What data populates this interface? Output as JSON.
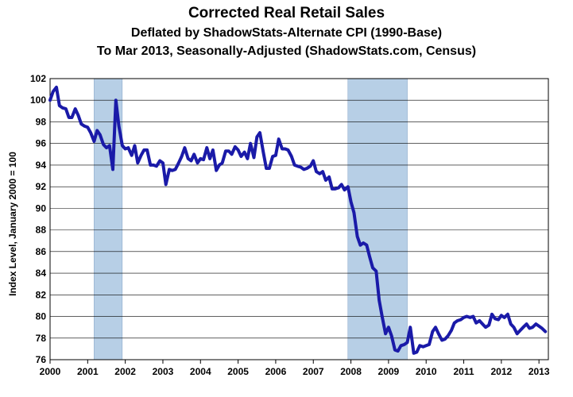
{
  "chart_data": {
    "type": "line",
    "title": "Corrected Real Retail Sales",
    "subtitle": "Deflated by ShadowStats-Alternate CPI (1990-Base)",
    "subtitle2": "To Mar 2013, Seasonally-Adjusted (ShadowStats.com, Census)",
    "ylabel": "Index Level, January 2000 = 100",
    "xlabel": "",
    "ylim": [
      76,
      102
    ],
    "xlim": [
      2000.0,
      2013.25
    ],
    "yticks": [
      "76",
      "78",
      "80",
      "82",
      "84",
      "86",
      "88",
      "90",
      "92",
      "94",
      "96",
      "98",
      "100",
      "102"
    ],
    "xticks": [
      "2000",
      "2001",
      "2002",
      "2003",
      "2004",
      "2005",
      "2006",
      "2007",
      "2008",
      "2009",
      "2010",
      "2011",
      "2012",
      "2013"
    ],
    "grid": true,
    "recession_periods": [
      [
        2001.17,
        2001.92
      ],
      [
        2007.92,
        2009.5
      ]
    ],
    "series": [
      {
        "name": "",
        "x": [
          2000.0,
          2000.08,
          2000.17,
          2000.25,
          2000.33,
          2000.42,
          2000.5,
          2000.58,
          2000.67,
          2000.75,
          2000.83,
          2000.92,
          2001.0,
          2001.08,
          2001.17,
          2001.25,
          2001.33,
          2001.42,
          2001.5,
          2001.58,
          2001.67,
          2001.75,
          2001.83,
          2001.92,
          2002.0,
          2002.08,
          2002.17,
          2002.25,
          2002.33,
          2002.42,
          2002.5,
          2002.58,
          2002.67,
          2002.75,
          2002.83,
          2002.92,
          2003.0,
          2003.08,
          2003.17,
          2003.25,
          2003.33,
          2003.42,
          2003.5,
          2003.58,
          2003.67,
          2003.75,
          2003.83,
          2003.92,
          2004.0,
          2004.08,
          2004.17,
          2004.25,
          2004.33,
          2004.42,
          2004.5,
          2004.58,
          2004.67,
          2004.75,
          2004.83,
          2004.92,
          2005.0,
          2005.08,
          2005.17,
          2005.25,
          2005.33,
          2005.42,
          2005.5,
          2005.58,
          2005.67,
          2005.75,
          2005.83,
          2005.92,
          2006.0,
          2006.08,
          2006.17,
          2006.25,
          2006.33,
          2006.42,
          2006.5,
          2006.58,
          2006.67,
          2006.75,
          2006.83,
          2006.92,
          2007.0,
          2007.08,
          2007.17,
          2007.25,
          2007.33,
          2007.42,
          2007.5,
          2007.58,
          2007.67,
          2007.75,
          2007.83,
          2007.92,
          2008.0,
          2008.08,
          2008.17,
          2008.25,
          2008.33,
          2008.42,
          2008.5,
          2008.58,
          2008.67,
          2008.75,
          2008.83,
          2008.92,
          2009.0,
          2009.08,
          2009.17,
          2009.25,
          2009.33,
          2009.42,
          2009.5,
          2009.58,
          2009.67,
          2009.75,
          2009.83,
          2009.92,
          2010.0,
          2010.08,
          2010.17,
          2010.25,
          2010.33,
          2010.42,
          2010.5,
          2010.58,
          2010.67,
          2010.75,
          2010.83,
          2010.92,
          2011.0,
          2011.08,
          2011.17,
          2011.25,
          2011.33,
          2011.42,
          2011.5,
          2011.58,
          2011.67,
          2011.75,
          2011.83,
          2011.92,
          2012.0,
          2012.08,
          2012.17,
          2012.25,
          2012.33,
          2012.42,
          2012.5,
          2012.58,
          2012.67,
          2012.75,
          2012.83,
          2012.92,
          2013.0,
          2013.08,
          2013.17
        ],
        "values": [
          100.0,
          100.8,
          101.2,
          99.5,
          99.3,
          99.2,
          98.4,
          98.4,
          99.2,
          98.6,
          97.8,
          97.6,
          97.5,
          97.0,
          96.2,
          97.2,
          96.8,
          95.9,
          95.6,
          95.8,
          93.6,
          100.0,
          97.6,
          95.8,
          95.5,
          95.6,
          94.9,
          95.8,
          94.2,
          94.9,
          95.4,
          95.4,
          94.0,
          94.0,
          93.9,
          94.4,
          94.2,
          92.2,
          93.6,
          93.5,
          93.6,
          94.2,
          94.8,
          95.6,
          94.6,
          94.4,
          95.0,
          94.2,
          94.6,
          94.5,
          95.6,
          94.6,
          95.4,
          93.5,
          94.0,
          94.2,
          95.3,
          95.3,
          95.0,
          95.7,
          95.4,
          94.8,
          95.2,
          94.6,
          96.0,
          94.7,
          96.6,
          97.0,
          95.2,
          93.7,
          93.7,
          94.8,
          94.9,
          96.4,
          95.5,
          95.5,
          95.4,
          94.8,
          94.0,
          93.9,
          93.8,
          93.6,
          93.7,
          93.9,
          94.4,
          93.4,
          93.2,
          93.4,
          92.6,
          92.9,
          91.8,
          91.8,
          91.9,
          92.2,
          91.7,
          92.0,
          90.6,
          89.6,
          87.4,
          86.6,
          86.8,
          86.6,
          85.5,
          84.5,
          84.2,
          81.5,
          80.0,
          78.4,
          79.0,
          78.2,
          76.9,
          76.8,
          77.3,
          77.4,
          77.6,
          79.0,
          76.6,
          76.7,
          77.3,
          77.2,
          77.3,
          77.4,
          78.6,
          79.0,
          78.4,
          77.8,
          77.9,
          78.2,
          78.7,
          79.4,
          79.6,
          79.7,
          79.9,
          80.0,
          79.9,
          80.0,
          79.4,
          79.6,
          79.3,
          79.0,
          79.2,
          80.2,
          79.8,
          79.7,
          80.1,
          79.9,
          80.2,
          79.3,
          79.0,
          78.4,
          78.7,
          79.0,
          79.3,
          78.9,
          79.0,
          79.3,
          79.1,
          78.9,
          78.6
        ]
      }
    ],
    "colors": {
      "line": "#1a1aa8",
      "recession_fill": "#b7cfe6",
      "grid": "#000000"
    }
  }
}
